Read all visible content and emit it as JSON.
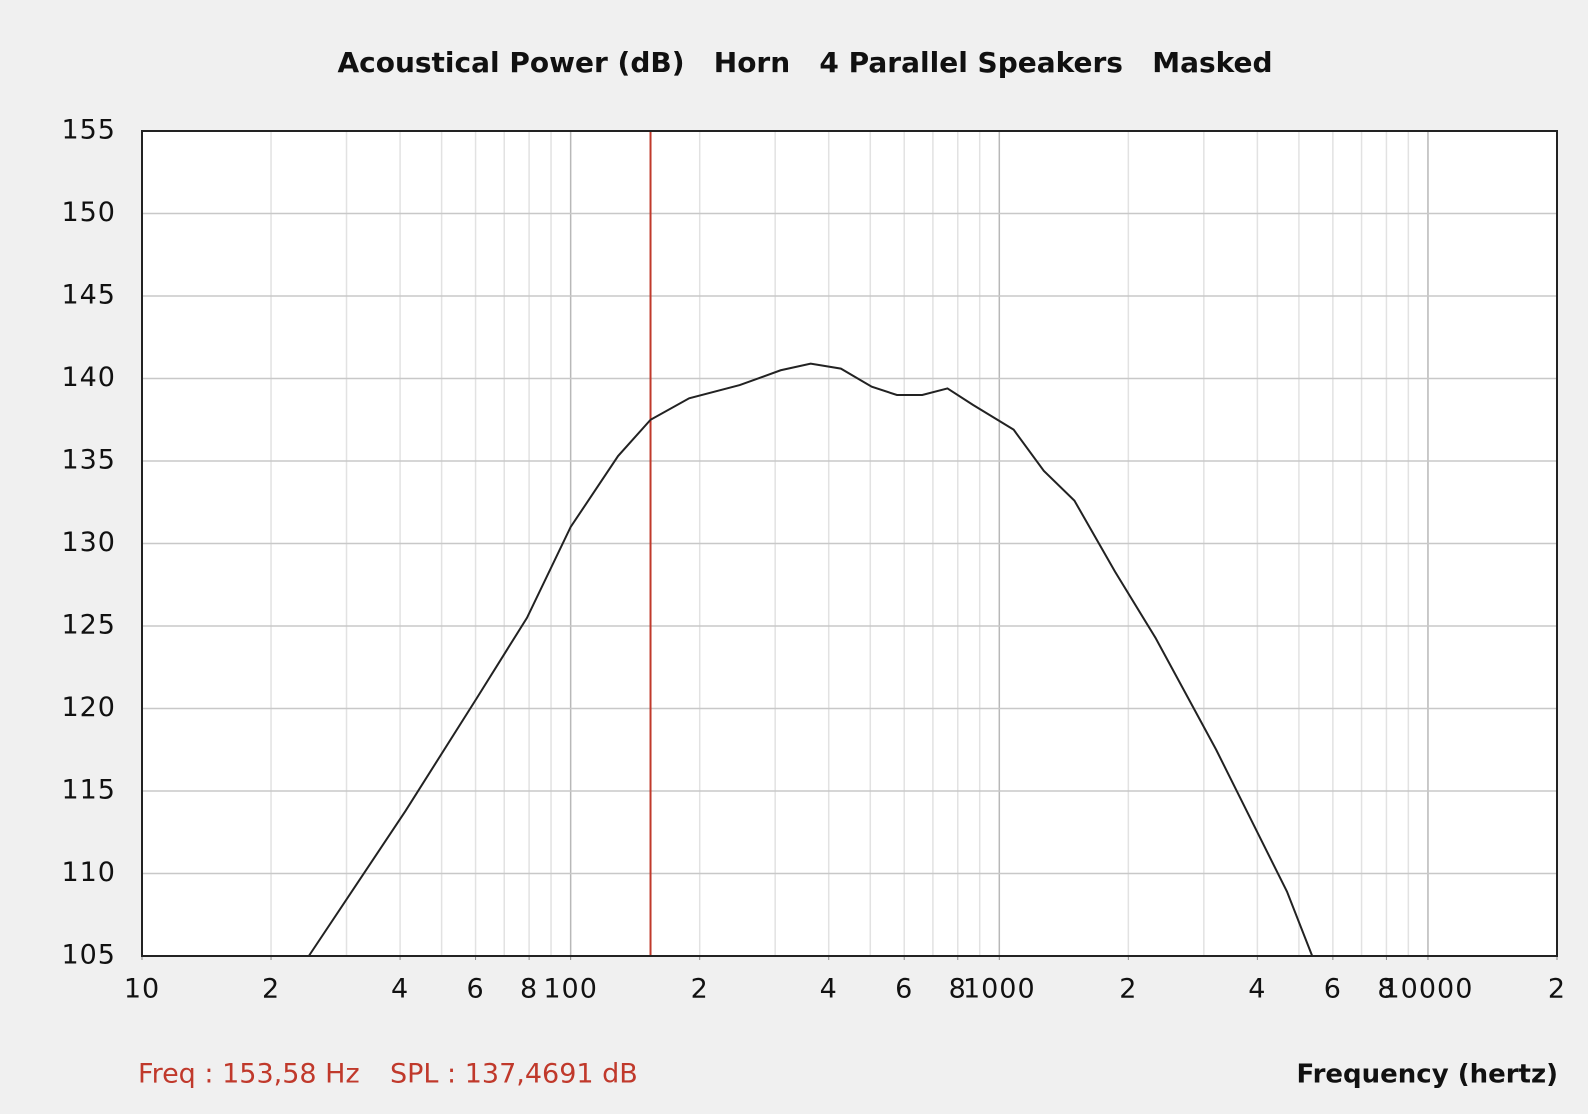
{
  "chart_data": {
    "type": "line",
    "title": "Acoustical Power (dB)   Horn   4 Parallel Speakers   Masked",
    "x_label": "Frequency (hertz)",
    "x_log": true,
    "grid": true,
    "minor_grid": true,
    "xlim": [
      10,
      20000
    ],
    "xticks": [
      10,
      {
        "value": 20,
        "label": "2"
      },
      {
        "value": 40,
        "label": "4"
      },
      {
        "value": 60,
        "label": "6"
      },
      {
        "value": 80,
        "label": "8"
      },
      100,
      {
        "value": 200,
        "label": "2"
      },
      {
        "value": 400,
        "label": "4"
      },
      {
        "value": 600,
        "label": "6"
      },
      {
        "value": 800,
        "label": "8"
      },
      1000,
      {
        "value": 2000,
        "label": "2"
      },
      {
        "value": 4000,
        "label": "4"
      },
      {
        "value": 6000,
        "label": "6"
      },
      {
        "value": 8000,
        "label": "8"
      },
      10000,
      {
        "value": 20000,
        "label": "2"
      }
    ],
    "ylim": [
      105,
      155
    ],
    "yticks": [
      105,
      110,
      115,
      120,
      125,
      130,
      135,
      140,
      145,
      150,
      155
    ],
    "x": [
      24.5,
      41.2,
      60.3,
      79.1,
      100,
      129,
      153.6,
      189,
      248,
      309,
      363,
      427,
      504,
      577,
      661,
      757,
      868,
      1080,
      1270,
      1497,
      1861,
      2312,
      3206,
      3981,
      4690,
      5370
    ],
    "series": [
      {
        "color": "#222222",
        "values": [
          105,
          113.8,
          120.6,
          125.5,
          131.0,
          135.3,
          137.5,
          138.8,
          139.6,
          140.5,
          140.9,
          140.6,
          139.5,
          139.0,
          139.0,
          139.4,
          138.4,
          136.9,
          134.4,
          132.6,
          128.3,
          124.3,
          117.5,
          112.6,
          108.9,
          105
        ]
      }
    ],
    "cursor": {
      "x": 153.58,
      "color": "#c0392b",
      "freq_label": "Freq : 153,58 Hz",
      "spl_label": "SPL : 137,4691 dB"
    }
  }
}
